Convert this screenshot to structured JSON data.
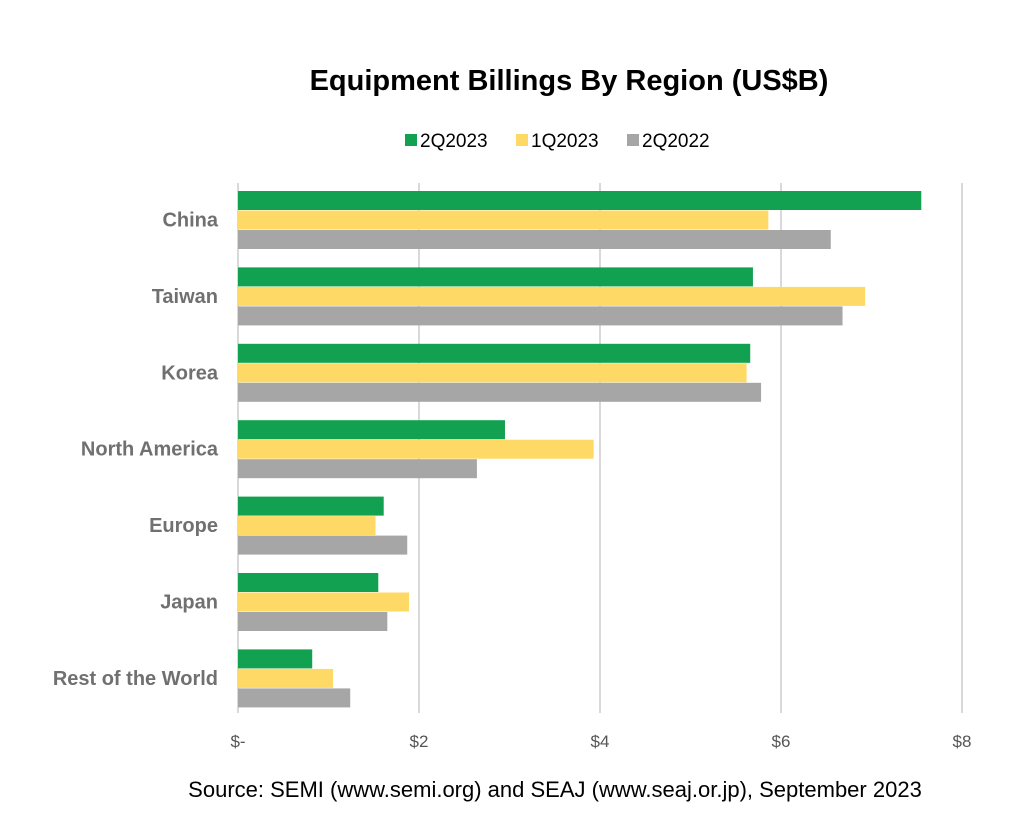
{
  "chart_data": {
    "type": "bar",
    "orientation": "horizontal",
    "title": "Equipment Billings By Region (US$B)",
    "categories": [
      "China",
      "Taiwan",
      "Korea",
      "North America",
      "Europe",
      "Japan",
      "Rest of the World"
    ],
    "series": [
      {
        "name": "2Q2023",
        "color": "#12a150",
        "values": [
          7.55,
          5.69,
          5.66,
          2.95,
          1.61,
          1.55,
          0.82
        ]
      },
      {
        "name": "1Q2023",
        "color": "#ffd966",
        "values": [
          5.86,
          6.93,
          5.62,
          3.93,
          1.52,
          1.89,
          1.05
        ]
      },
      {
        "name": "2Q2022",
        "color": "#a6a6a6",
        "values": [
          6.55,
          6.68,
          5.78,
          2.64,
          1.87,
          1.65,
          1.24
        ]
      }
    ],
    "xlim": [
      0,
      8
    ],
    "xticks": [
      0,
      2,
      4,
      6,
      8
    ],
    "xtick_labels": [
      "$-",
      "$2",
      "$4",
      "$6",
      "$8"
    ],
    "grid": true,
    "legend_position": "top",
    "source": "Source: SEMI (www.semi.org) and SEAJ (www.seaj.or.jp), September 2023"
  }
}
